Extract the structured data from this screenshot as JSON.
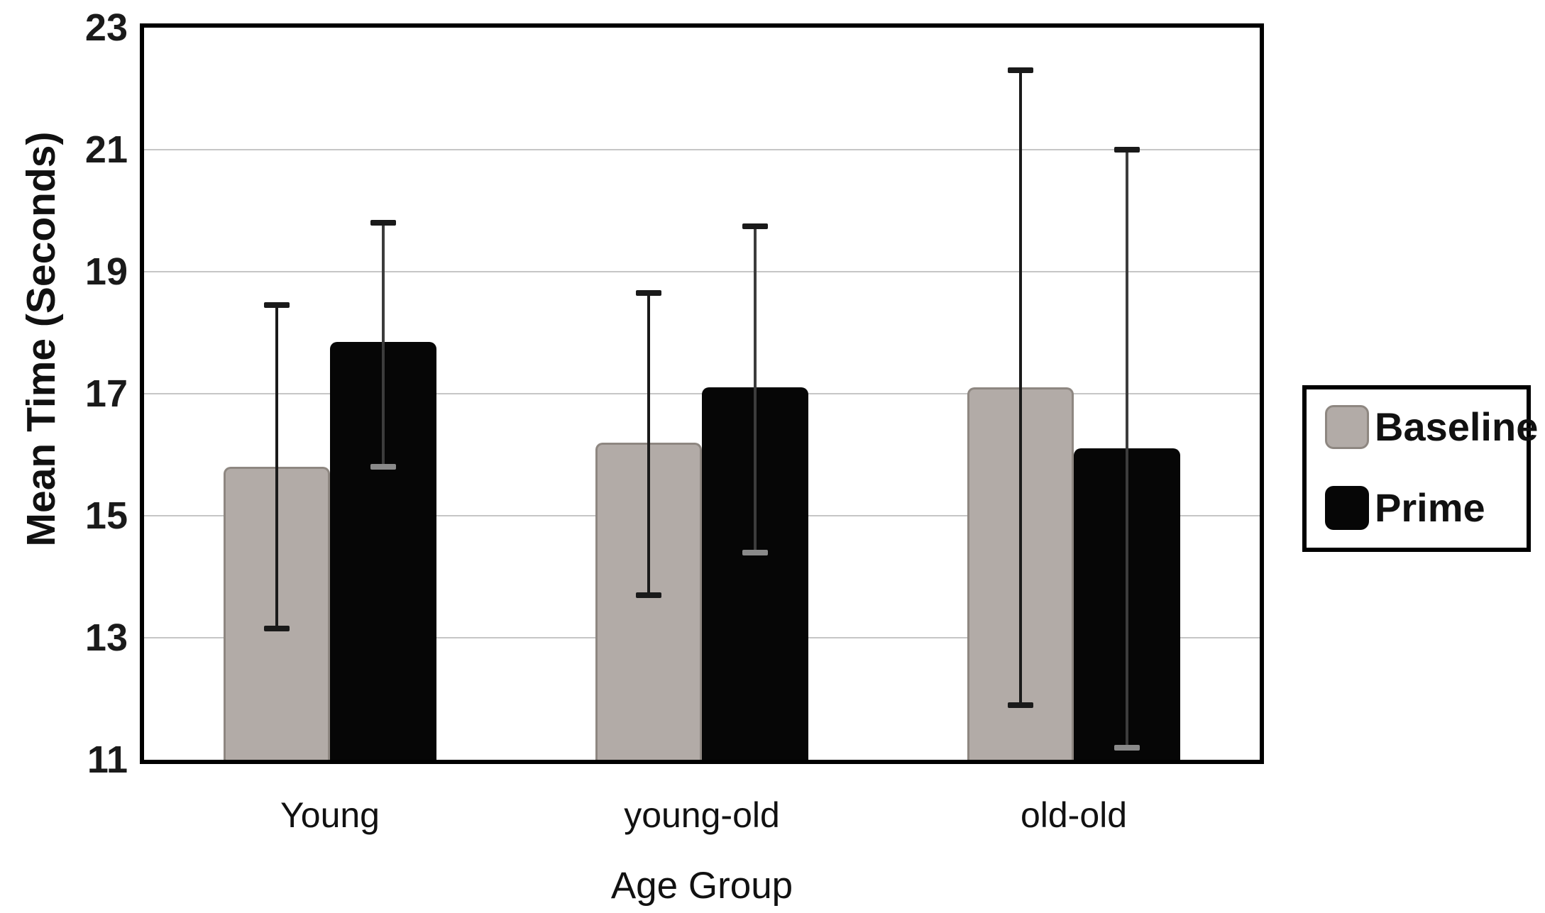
{
  "chart_data": {
    "type": "bar",
    "title": "",
    "categories": [
      "Young",
      "young-old",
      "old-old"
    ],
    "series": [
      {
        "name": "Baseline",
        "color": "#b2aba7",
        "values": [
          15.8,
          16.2,
          17.1
        ],
        "error_low": [
          13.15,
          13.7,
          11.9
        ],
        "error_high": [
          18.45,
          18.65,
          22.3
        ]
      },
      {
        "name": "Prime",
        "color": "#060606",
        "values": [
          17.85,
          17.1,
          16.1
        ],
        "error_low": [
          15.8,
          14.4,
          11.2
        ],
        "error_high": [
          19.8,
          19.75,
          21.0
        ]
      }
    ],
    "xlabel": "Age Group",
    "ylabel": "Mean Time (Seconds)",
    "ylim": [
      11,
      23
    ],
    "yticks": [
      11,
      13,
      15,
      17,
      19,
      21,
      23
    ],
    "grid": true,
    "legend_position": "right-outside"
  },
  "legend": {
    "items": [
      {
        "label": "Baseline",
        "color": "#b2aba7"
      },
      {
        "label": "Prime",
        "color": "#060606"
      }
    ]
  },
  "colors": {
    "grid": "#c6c6c6",
    "frame": "#000000",
    "whisker": "#1a1a1a",
    "whisker_on_black": "#8a8a8a",
    "background": "#ffffff"
  }
}
